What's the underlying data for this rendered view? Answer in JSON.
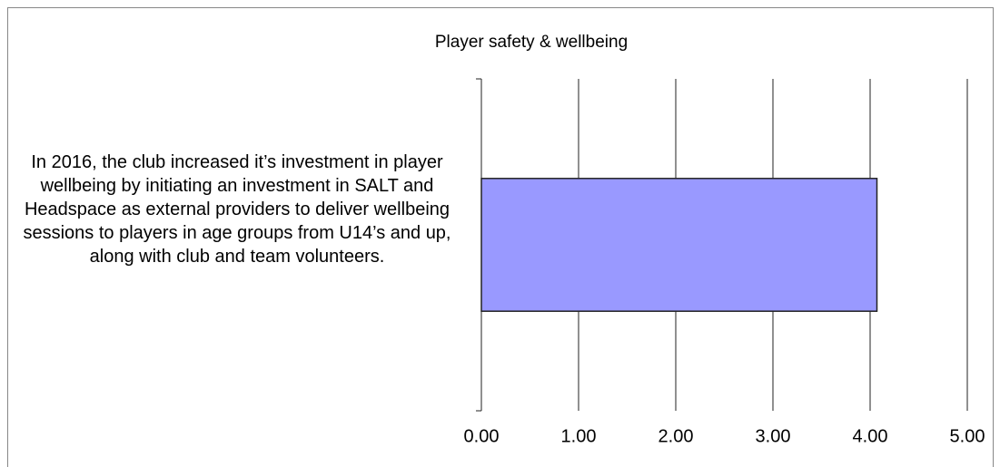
{
  "chart_data": {
    "type": "hbar",
    "title": "Player safety & wellbeing",
    "categories": [
      "In 2016, the club increased it’s investment in player wellbeing by initiating an investment in SALT and Headspace as external providers to deliver wellbeing sessions to players in age groups from U14’s and up, along with club and team volunteers."
    ],
    "values": [
      4.07
    ],
    "color": "#9999ff",
    "xlim": [
      0,
      5
    ],
    "xticks": [
      {
        "value": 0,
        "label": "0.00"
      },
      {
        "value": 1,
        "label": "1.00"
      },
      {
        "value": 2,
        "label": "2.00"
      },
      {
        "value": 3,
        "label": "3.00"
      },
      {
        "value": 4,
        "label": "4.00"
      },
      {
        "value": 5,
        "label": "5.00"
      }
    ],
    "grid": true
  }
}
